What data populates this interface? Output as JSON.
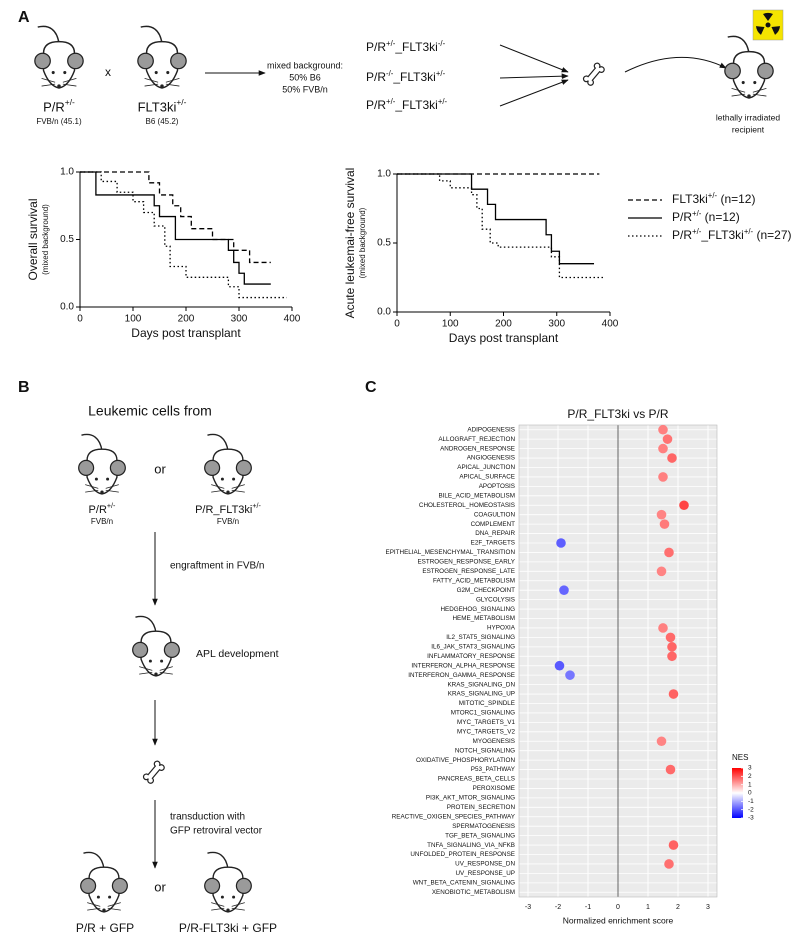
{
  "panel_labels": [
    "A",
    "B",
    "C"
  ],
  "panel_a": {
    "parent1": {
      "genotype": "P/R+/-",
      "strain": "FVB/n (45.1)"
    },
    "cross": "x",
    "parent2": {
      "genotype": "FLT3ki+/-",
      "strain": "B6 (45.2)"
    },
    "background": [
      "mixed background:",
      "50% B6",
      "50% FVB/n"
    ],
    "genotypes": [
      "P/R+/-_FLT3ki-/-",
      "P/R-/-_FLT3ki+/-",
      "P/R+/-_FLT3ki+/-"
    ],
    "recipient": [
      "lethally irradiated",
      "recipient"
    ]
  },
  "panel_b": {
    "title": "Leukemic cells from",
    "donor1": {
      "genotype": "P/R+/-",
      "strain": "FVB/n"
    },
    "or": "or",
    "donor2": {
      "genotype": "P/R_FLT3ki+/-",
      "strain": "FVB/n"
    },
    "step1": "engraftment in FVB/n",
    "step2": "APL development",
    "step3": [
      "transduction with",
      "GFP retroviral vector"
    ],
    "result1": "P/R + GFP",
    "result2": "P/R-FLT3ki + GFP"
  },
  "chart_data": [
    {
      "type": "step",
      "ylabel": "Overall survival",
      "ylabel_note": "(mixed background)",
      "xlabel": "Days post transplant",
      "xlim": [
        0,
        400
      ],
      "ylim": [
        0,
        1
      ],
      "xticks": [
        0,
        100,
        200,
        300,
        400
      ],
      "yticks": [
        {
          "value": 0,
          "label": "0.0"
        },
        {
          "value": 0.5,
          "label": "0.5"
        },
        {
          "value": 1,
          "label": "1.0"
        }
      ],
      "series": [
        {
          "name": "FLT3ki+/- (n=12)",
          "color": "#000000",
          "dash": "dashed",
          "x": [
            0,
            130,
            150,
            175,
            190,
            210,
            250,
            290,
            320,
            360
          ],
          "values": [
            1,
            0.92,
            0.83,
            0.75,
            0.67,
            0.58,
            0.5,
            0.42,
            0.33,
            0.33
          ]
        },
        {
          "name": "P/R+/- (n=12)",
          "color": "#000000",
          "dash": "solid",
          "x": [
            0,
            30,
            140,
            150,
            180,
            280,
            290,
            300,
            310,
            360
          ],
          "values": [
            1,
            0.83,
            0.75,
            0.67,
            0.5,
            0.42,
            0.33,
            0.25,
            0.17,
            0.17
          ]
        },
        {
          "name": "P/R+/-_FLT3ki+/- (n=27)",
          "color": "#000000",
          "dash": "dotted",
          "x": [
            0,
            40,
            70,
            100,
            120,
            140,
            160,
            170,
            200,
            280,
            300,
            390
          ],
          "values": [
            1,
            0.93,
            0.85,
            0.78,
            0.7,
            0.6,
            0.45,
            0.3,
            0.22,
            0.15,
            0.07,
            0.07
          ]
        }
      ]
    },
    {
      "type": "step",
      "ylabel": "Acute leukemai-free survival",
      "ylabel_note": "(mixed background)",
      "xlabel": "Days post transplant",
      "xlim": [
        0,
        400
      ],
      "ylim": [
        0,
        1
      ],
      "xticks": [
        0,
        100,
        200,
        300,
        400
      ],
      "yticks": [
        {
          "value": 0,
          "label": "0.0"
        },
        {
          "value": 0.5,
          "label": "0.5"
        },
        {
          "value": 1,
          "label": "1.0"
        }
      ],
      "series": [
        {
          "color": "#000000",
          "dash": "dashed",
          "x": [
            0,
            380
          ],
          "values": [
            1,
            1
          ]
        },
        {
          "color": "#000000",
          "dash": "solid",
          "x": [
            0,
            140,
            170,
            185,
            280,
            290,
            305,
            370
          ],
          "values": [
            1,
            0.89,
            0.78,
            0.67,
            0.56,
            0.44,
            0.35,
            0.35
          ]
        },
        {
          "color": "#000000",
          "dash": "dotted",
          "x": [
            0,
            80,
            100,
            140,
            150,
            160,
            175,
            190,
            290,
            305,
            390
          ],
          "values": [
            1,
            0.95,
            0.9,
            0.85,
            0.75,
            0.6,
            0.5,
            0.47,
            0.4,
            0.25,
            0.25
          ]
        }
      ]
    },
    {
      "type": "dot",
      "title": "P/R_FLT3ki vs P/R",
      "xlabel": "Normalized enrichment score",
      "categories": [
        "ADIPOGENESIS",
        "ALLOGRAFT_REJECTION",
        "ANDROGEN_RESPONSE",
        "ANGIOGENESIS",
        "APICAL_JUNCTION",
        "APICAL_SURFACE",
        "APOPTOSIS",
        "BILE_ACID_METABOLISM",
        "CHOLESTEROL_HOMEOSTASIS",
        "COAGULTION",
        "COMPLEMENT",
        "DNA_REPAIR",
        "E2F_TARGETS",
        "EPITHELIAL_MESENCHYMAL_TRANSITION",
        "ESTROGEN_RESPONSE_EARLY",
        "ESTROGEN_RESPONSE_LATE",
        "FATTY_ACID_METABOLISM",
        "G2M_CHECKPOINT",
        "GLYCOLYSIS",
        "HEDGEHOG_SIGNALING",
        "HEME_METABOLISM",
        "HYPOXIA",
        "IL2_STAT5_SIGNALING",
        "IL6_JAK_STAT3_SIGNALING",
        "INFLAMMATORY_RESPONSE",
        "INTERFERON_ALPHA_RESPONSE",
        "INTERFERON_GAMMA_RESPONSE",
        "KRAS_SIGNALING_DN",
        "KRAS_SIGNALING_UP",
        "MITOTIC_SPINDLE",
        "MTORC1_SIGNALING",
        "MYC_TARGETS_V1",
        "MYC_TARGETS_V2",
        "MYOGENESIS",
        "NOTCH_SIGNALING",
        "OXIDATIVE_PHOSPHORYLATION",
        "P53_PATHWAY",
        "PANCREAS_BETA_CELLS",
        "PEROXISOME",
        "PI3K_AKT_MTOR_SIGNALING",
        "PROTEIN_SECRETION",
        "REACTIVE_OXIGEN_SPECIES_PATHWAY",
        "SPERMATOGENESIS",
        "TGF_BETA_SIGNALING",
        "TNFA_SIGNALING_VIA_NFKB",
        "UNFOLDED_PROTEIN_RESPONSE",
        "UV_RESPONSE_DN",
        "UV_RESPONSE_UP",
        "WNT_BETA_CATENIN_SIGNALING",
        "XENOBIOTIC_METABOLISM"
      ],
      "values": [
        1.5,
        1.65,
        1.5,
        1.8,
        null,
        1.5,
        null,
        null,
        2.2,
        1.45,
        1.55,
        null,
        -1.9,
        1.7,
        null,
        1.45,
        null,
        -1.8,
        null,
        null,
        null,
        1.5,
        1.75,
        1.8,
        1.8,
        -1.95,
        -1.6,
        null,
        1.85,
        null,
        null,
        null,
        null,
        1.45,
        null,
        null,
        1.75,
        null,
        null,
        null,
        null,
        null,
        null,
        null,
        1.85,
        null,
        1.7,
        null,
        null,
        null
      ],
      "xlim": [
        -3.3,
        3.3
      ],
      "xticks": [
        -3,
        -2,
        -1,
        0,
        1,
        2,
        3
      ],
      "grid": true,
      "colorbar": {
        "title": "NES",
        "clim": [
          -3,
          3
        ],
        "ticks": [
          3,
          2,
          1,
          0,
          -1,
          -2,
          -3
        ],
        "colors": [
          "#0000ff",
          "#ffffff",
          "#ff0000"
        ]
      }
    }
  ]
}
